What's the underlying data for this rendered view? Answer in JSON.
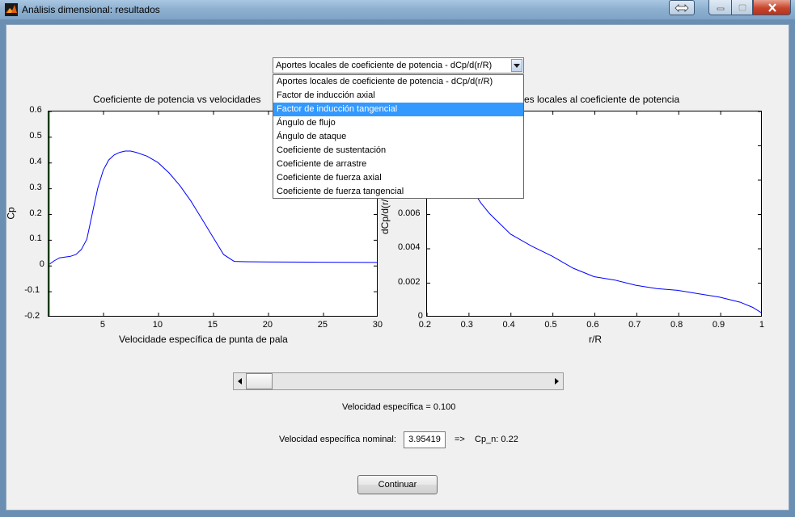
{
  "window": {
    "title": "Análisis dimensional: resultados"
  },
  "titlebar": {
    "restore_icon": "resize-arrows-icon",
    "minimize_icon": "minimize-icon",
    "maximize_icon": "maximize-icon",
    "close_icon": "close-icon"
  },
  "left_plot": {
    "title": "Coeficiente de potencia vs velocidades",
    "xlabel": "Velocidade específica de punta de pala",
    "ylabel": "Cp",
    "xticks": [
      "5",
      "10",
      "15",
      "20",
      "25",
      "30"
    ],
    "yticks": [
      "0.6",
      "0.5",
      "0.4",
      "0.3",
      "0.2",
      "0.1",
      "0",
      "-0.1",
      "-0.2"
    ]
  },
  "right_plot": {
    "title": "es locales al coeficiente de potencia",
    "xlabel": "r/R",
    "ylabel": "dCp/d(r/R)",
    "xticks": [
      "0.2",
      "0.3",
      "0.4",
      "0.5",
      "0.6",
      "0.7",
      "0.8",
      "0.9",
      "1"
    ],
    "yticks": [
      "0.006",
      "0.004",
      "0.002",
      "0"
    ]
  },
  "chart_data": [
    {
      "type": "line",
      "title": "Coeficiente de potencia vs velocidades",
      "xlabel": "Velocidade específica de punta de pala",
      "ylabel": "Cp",
      "xlim": [
        0,
        30
      ],
      "ylim": [
        -0.2,
        0.6
      ],
      "grid": false,
      "series": [
        {
          "color": "#0000ff",
          "x": [
            0,
            0.5,
            1,
            1.5,
            2,
            2.5,
            3,
            3.5,
            4,
            4.5,
            5,
            5.5,
            6,
            6.5,
            7,
            7.5,
            8,
            9,
            10,
            11,
            12,
            13,
            14,
            15,
            16,
            16.9,
            17,
            18,
            20,
            25,
            30
          ],
          "y": [
            0.0,
            0.015,
            0.027,
            0.03,
            0.033,
            0.04,
            0.06,
            0.1,
            0.2,
            0.3,
            0.37,
            0.41,
            0.43,
            0.44,
            0.445,
            0.445,
            0.44,
            0.425,
            0.4,
            0.36,
            0.31,
            0.25,
            0.18,
            0.11,
            0.04,
            0.015,
            0.013,
            0.012,
            0.011,
            0.01,
            0.009
          ]
        }
      ]
    },
    {
      "type": "line",
      "title": "es locales al coeficiente de potencia",
      "xlabel": "r/R",
      "ylabel": "dCp/d(r/R)",
      "xlim": [
        0.2,
        1.0
      ],
      "ylim": [
        0,
        0.012
      ],
      "grid": false,
      "series": [
        {
          "color": "#0000ff",
          "x": [
            0.2,
            0.25,
            0.3,
            0.33,
            0.35,
            0.4,
            0.45,
            0.5,
            0.55,
            0.6,
            0.65,
            0.7,
            0.75,
            0.8,
            0.85,
            0.9,
            0.95,
            0.98,
            1.0
          ],
          "y": [
            0.0115,
            0.0095,
            0.0077,
            0.0066,
            0.006,
            0.0048,
            0.0041,
            0.0035,
            0.0028,
            0.0023,
            0.0021,
            0.0018,
            0.0016,
            0.0015,
            0.0013,
            0.0011,
            0.0008,
            0.0005,
            0.0002
          ]
        }
      ]
    }
  ],
  "selector": {
    "value": "Aportes locales de coeficiente de potencia - dCp/d(r/R)",
    "options": [
      "Aportes locales de coeficiente de potencia - dCp/d(r/R)",
      "Factor de inducción axial",
      "Factor de inducción tangencial",
      "Ángulo de flujo",
      "Ángulo de ataque",
      "Coeficiente de sustentación",
      "Coeficiente de arrastre",
      "Coeficiente de fuerza axial",
      "Coeficiente de fuerza tangencial"
    ],
    "highlighted_index": 2
  },
  "slider": {
    "value": 0.1
  },
  "speed_label": "Velocidad específica = 0.100",
  "nominal": {
    "label": "Velocidad específica nominal:",
    "value": "3.95419",
    "arrow": "=>",
    "cp_text": "Cp_n:  0.22"
  },
  "continue_button": "Continuar"
}
